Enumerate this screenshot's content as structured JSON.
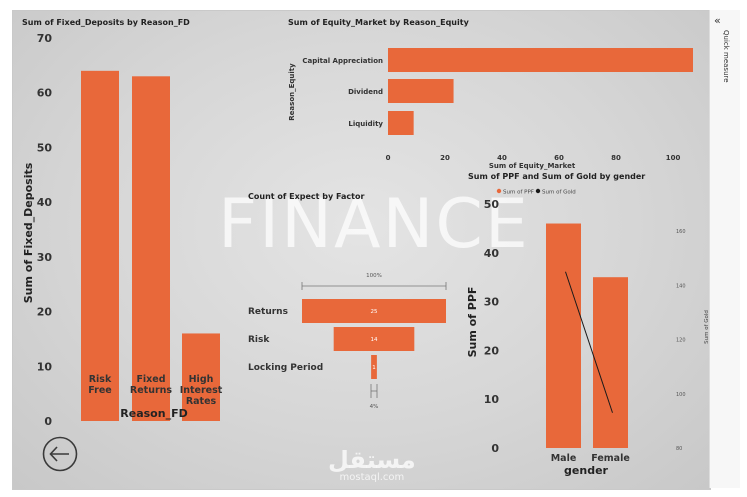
{
  "quick_measure_label": "Quick measure",
  "watermark_text": "FINANCE",
  "footer_arabic": "مستقل",
  "footer_domain": "mostaql.com",
  "colors": {
    "bar": "#E8683A",
    "line": "#1a1a1a"
  },
  "chart_data": [
    {
      "id": "fixed-deposits",
      "type": "bar",
      "title": "Sum of Fixed_Deposits by Reason_FD",
      "xlabel": "Reason_FD",
      "ylabel": "Sum of Fixed_Deposits",
      "categories": [
        [
          "Risk",
          "Free"
        ],
        [
          "Fixed",
          "Returns"
        ],
        [
          "High",
          "Interest",
          "Rates"
        ]
      ],
      "values": [
        64,
        63,
        16
      ],
      "ylim": [
        0,
        70
      ],
      "yticks": [
        0,
        10,
        20,
        30,
        40,
        50,
        60,
        70
      ]
    },
    {
      "id": "equity-market",
      "type": "bar",
      "orientation": "horizontal",
      "title": "Sum of Equity_Market by Reason_Equity",
      "xlabel": "Sum of Equity_Market",
      "ylabel": "Reason_Equity",
      "categories": [
        "Capital Appreciation",
        "Dividend",
        "Liquidity"
      ],
      "values": [
        107,
        23,
        9
      ],
      "xlim": [
        0,
        107
      ],
      "xticks": [
        0,
        20,
        40,
        60,
        80,
        100
      ]
    },
    {
      "id": "expect-factor",
      "type": "bar",
      "subtype": "funnel",
      "title": "Count of Expect by Factor",
      "categories": [
        "Returns",
        "Risk",
        "Locking Period"
      ],
      "values": [
        25,
        14,
        1
      ],
      "top_percent_label": "100%",
      "bottom_percent_label": "4%"
    },
    {
      "id": "ppf-gold",
      "type": "bar",
      "title": "Sum of PPF and Sum of Gold by gender",
      "xlabel": "gender",
      "ylabel": "Sum of PPF",
      "y2label": "Sum of Gold",
      "categories": [
        "Male",
        "Female"
      ],
      "series": [
        {
          "name": "Sum of PPF",
          "type": "bar",
          "values": [
            46,
            35
          ]
        },
        {
          "name": "Sum of Gold",
          "type": "line",
          "values": [
            145,
            93
          ]
        }
      ],
      "ylim": [
        0,
        50
      ],
      "yticks": [
        0,
        10,
        20,
        30,
        40,
        50
      ],
      "y2lim": [
        80,
        170
      ],
      "y2ticks": [
        80,
        100,
        120,
        140,
        160
      ],
      "legend": "top-left"
    }
  ]
}
